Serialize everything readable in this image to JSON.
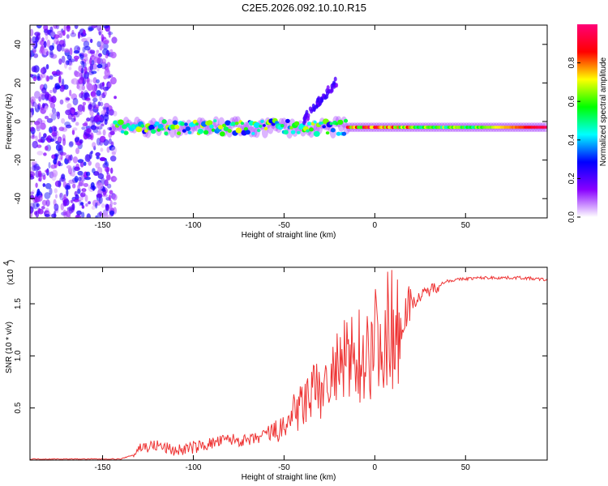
{
  "chart_data": [
    {
      "type": "heatmap",
      "title": "C2E5.2026.092.10.10.R15",
      "xlabel": "Height of straight line (km)",
      "ylabel": "Frequency (Hz)",
      "xlim": [
        -190,
        95
      ],
      "ylim": [
        -50,
        50
      ],
      "xticks": [
        -150,
        -100,
        -50,
        0,
        50
      ],
      "yticks": [
        -40,
        -20,
        0,
        20,
        40
      ],
      "colorbar": {
        "label": "Normalized spectral amplitude",
        "range": [
          0.0,
          1.0
        ],
        "ticks": [
          "0.0",
          "0.2",
          "0.4",
          "0.6",
          "0.8"
        ],
        "colors": [
          "#ffffff",
          "#8800ff",
          "#0000ff",
          "#00ffff",
          "#00ff00",
          "#ffff00",
          "#ff0000",
          "#ff0077"
        ]
      },
      "features": [
        {
          "name": "noise",
          "x_range": [
            -190,
            -143
          ],
          "frequency_range": [
            -50,
            50
          ],
          "amplitude": 0.15
        },
        {
          "name": "main_band",
          "x_range": [
            -143,
            95
          ],
          "frequency_center": -3,
          "peak_amplitude": 1.0
        },
        {
          "name": "arc_branch",
          "x_range": [
            -40,
            -20
          ],
          "frequency_range": [
            0,
            22
          ],
          "amplitude": 0.15
        }
      ]
    },
    {
      "type": "line",
      "xlabel": "Height of straight line (km)",
      "ylabel": "SNR (10 * v/v)",
      "scale_label": "(x10",
      "scale_exp": "4",
      "xlim": [
        -190,
        95
      ],
      "ylim": [
        0,
        1.85
      ],
      "xticks": [
        -150,
        -100,
        -50,
        0,
        50
      ],
      "yticks": [
        0.5,
        1.0,
        1.5
      ],
      "ytick_labels": [
        "0.5",
        "1.0",
        "1.5"
      ],
      "color": "#ee3333",
      "series": [
        {
          "name": "SNR",
          "x": [
            -190,
            -140,
            -133,
            -130,
            -120,
            -110,
            -100,
            -90,
            -80,
            -70,
            -60,
            -50,
            -45,
            -40,
            -35,
            -30,
            -25,
            -20,
            -15,
            -10,
            -5,
            0,
            10,
            20,
            30,
            40,
            50,
            60,
            70,
            80,
            95
          ],
          "y": [
            0.01,
            0.01,
            0.05,
            0.12,
            0.14,
            0.09,
            0.12,
            0.16,
            0.2,
            0.18,
            0.24,
            0.3,
            0.45,
            0.55,
            0.65,
            0.7,
            0.8,
            0.9,
            1.0,
            1.05,
            1.1,
            1.2,
            1.35,
            1.5,
            1.63,
            1.72,
            1.74,
            1.75,
            1.75,
            1.75,
            1.73
          ]
        }
      ]
    }
  ]
}
